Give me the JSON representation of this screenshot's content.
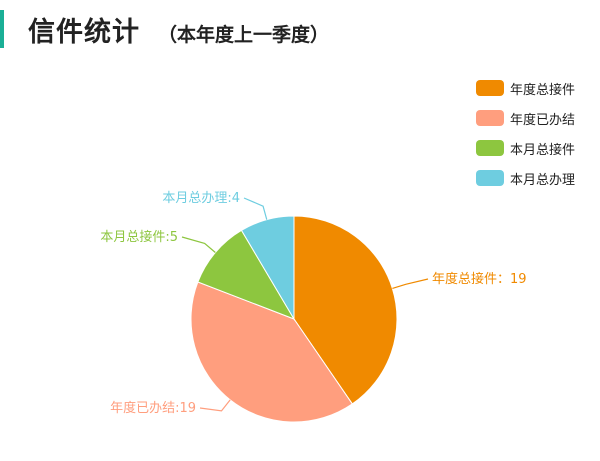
{
  "header": {
    "title": "信件统计",
    "subtitle": "（本年度上一季度）",
    "accent_color": "#1aaf96"
  },
  "chart_data": {
    "type": "pie",
    "title": "信件统计",
    "subtitle": "（本年度上一季度）",
    "legend_position": "top-right",
    "slices": [
      {
        "label": "年度总接件",
        "value": 19,
        "color": "#f08a00",
        "data_label": "年度总接件：19"
      },
      {
        "label": "年度已办结",
        "value": 19,
        "color": "#ff9e7e",
        "data_label": "年度已办结:19"
      },
      {
        "label": "本月总接件",
        "value": 5,
        "color": "#8dc63f",
        "data_label": "本月总接件:5"
      },
      {
        "label": "本月总办理",
        "value": 4,
        "color": "#6ecde0",
        "data_label": "本月总办理:4"
      }
    ]
  }
}
